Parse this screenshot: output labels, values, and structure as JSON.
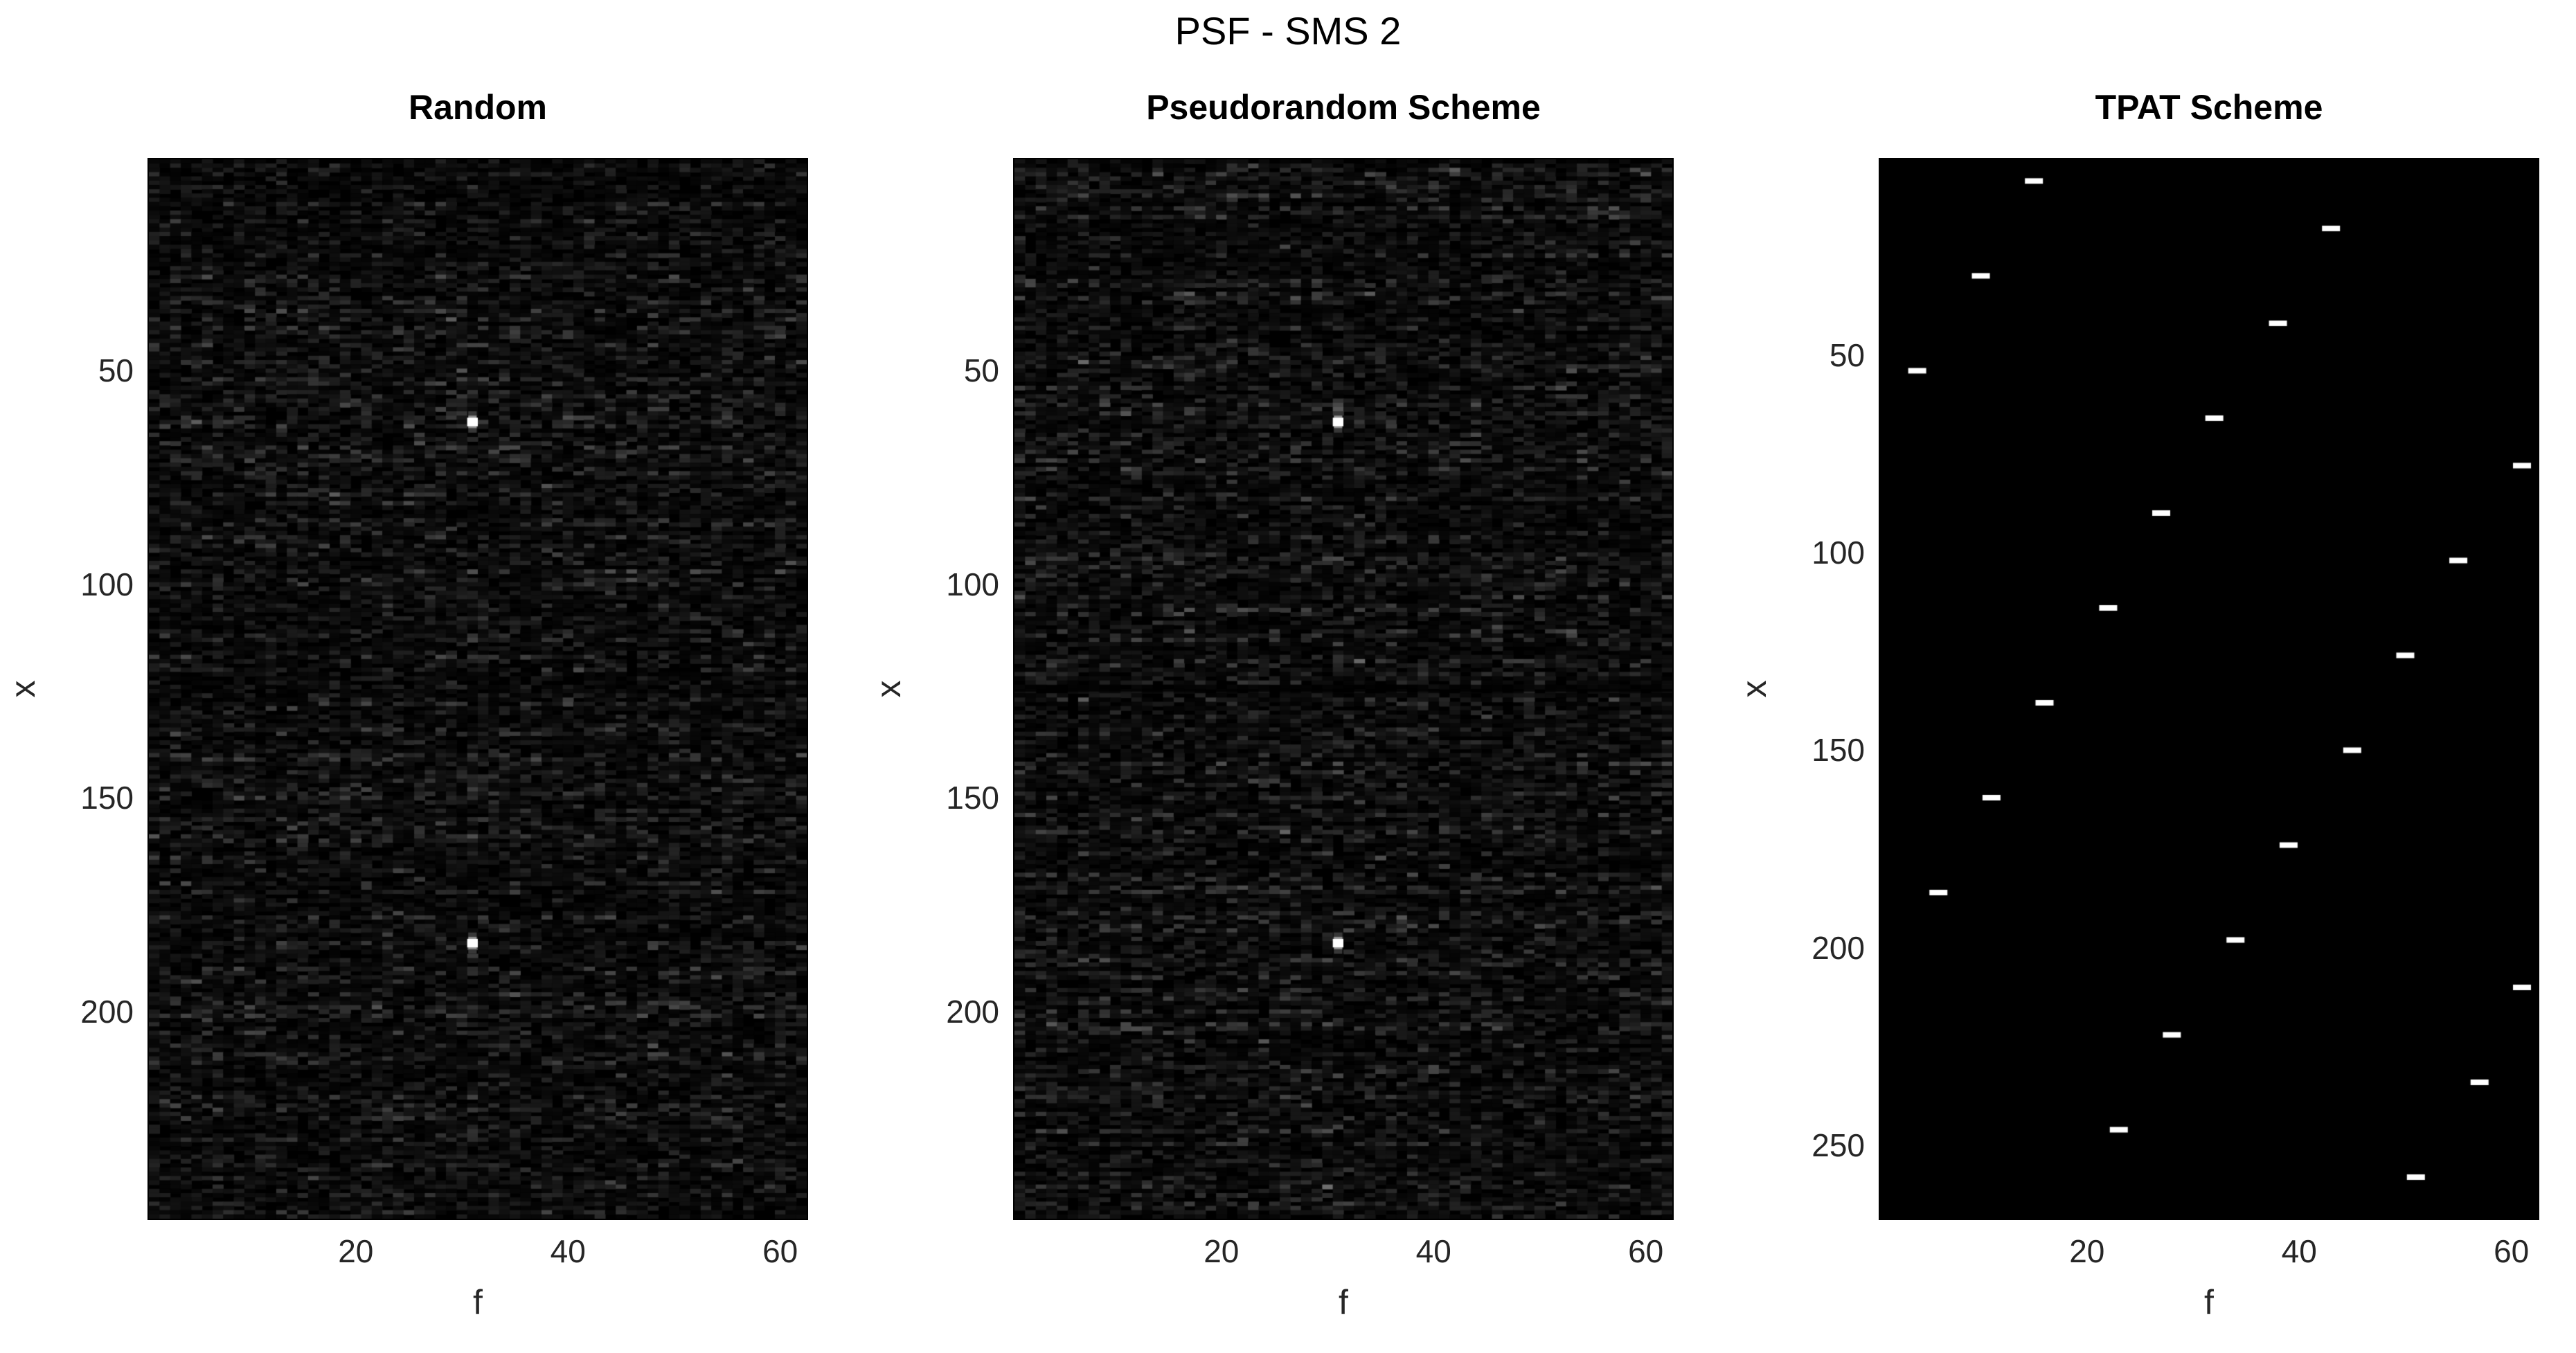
{
  "figure": {
    "title": "PSF - SMS 2"
  },
  "colors": {
    "background": "#ffffff",
    "axis_text": "#262626",
    "title_text": "#000000",
    "heatmap_background": "#000000",
    "spot": "#ffffff"
  },
  "chart_data": [
    {
      "type": "heatmap",
      "render": "noise",
      "title": "Random",
      "xlabel": "f",
      "ylabel": "x",
      "cols": 62,
      "rows": 248,
      "x_range": [
        1,
        62
      ],
      "y_range": [
        1,
        248
      ],
      "y_axis": "reversed",
      "xticks": [
        20,
        40,
        60
      ],
      "yticks": [
        50,
        100,
        150,
        200
      ],
      "noise_seed": 1337,
      "noise_level": 0.22,
      "dark_rows": [],
      "bright_spots": [
        {
          "f": 31,
          "x": 62
        },
        {
          "f": 31,
          "x": 184
        }
      ]
    },
    {
      "type": "heatmap",
      "render": "noise",
      "title": "Pseudorandom Scheme",
      "xlabel": "f",
      "ylabel": "x",
      "cols": 62,
      "rows": 248,
      "x_range": [
        1,
        62
      ],
      "y_range": [
        1,
        248
      ],
      "y_axis": "reversed",
      "xticks": [
        20,
        40,
        60
      ],
      "yticks": [
        50,
        100,
        150,
        200
      ],
      "noise_seed": 9042,
      "noise_level": 0.22,
      "dark_rows": [
        124
      ],
      "bright_spots": [
        {
          "f": 31,
          "x": 62
        },
        {
          "f": 31,
          "x": 184
        }
      ]
    },
    {
      "type": "heatmap",
      "render": "dashes",
      "title": "TPAT Scheme",
      "xlabel": "f",
      "ylabel": "x",
      "cols": 62,
      "rows": 268,
      "x_range": [
        1,
        62
      ],
      "y_range": [
        1,
        268
      ],
      "y_axis": "reversed",
      "xticks": [
        20,
        40,
        60
      ],
      "yticks": [
        50,
        100,
        150,
        200,
        250
      ],
      "points": [
        {
          "f": 15,
          "x": 6
        },
        {
          "f": 43,
          "x": 18
        },
        {
          "f": 10,
          "x": 30
        },
        {
          "f": 38,
          "x": 42
        },
        {
          "f": 4,
          "x": 54
        },
        {
          "f": 32,
          "x": 66
        },
        {
          "f": 61,
          "x": 78
        },
        {
          "f": 27,
          "x": 90
        },
        {
          "f": 55,
          "x": 102
        },
        {
          "f": 22,
          "x": 114
        },
        {
          "f": 50,
          "x": 126
        },
        {
          "f": 16,
          "x": 138
        },
        {
          "f": 45,
          "x": 150
        },
        {
          "f": 11,
          "x": 162
        },
        {
          "f": 39,
          "x": 174
        },
        {
          "f": 6,
          "x": 186
        },
        {
          "f": 34,
          "x": 198
        },
        {
          "f": 61,
          "x": 210
        },
        {
          "f": 28,
          "x": 222
        },
        {
          "f": 57,
          "x": 234
        },
        {
          "f": 23,
          "x": 246
        },
        {
          "f": 51,
          "x": 258
        }
      ]
    }
  ]
}
